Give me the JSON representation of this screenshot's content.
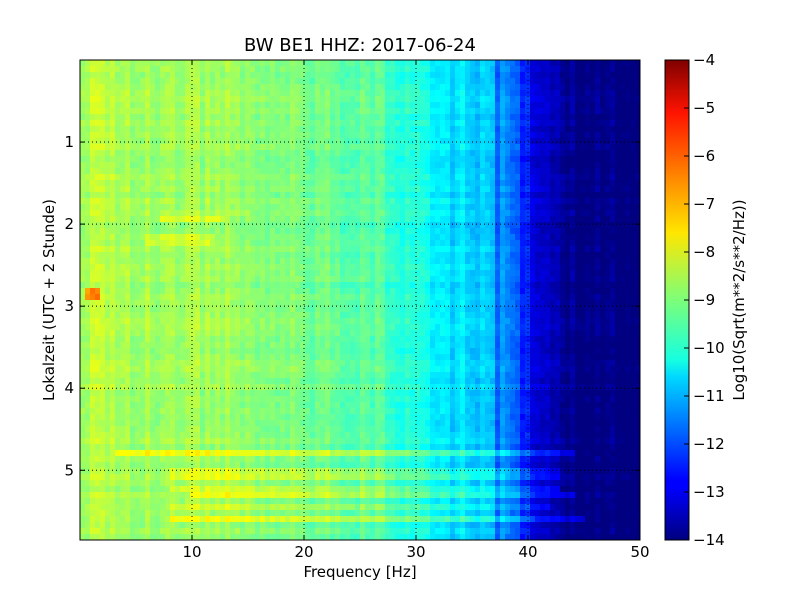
{
  "chart_data": {
    "type": "heatmap",
    "title": "BW BE1 HHZ: 2017-06-24",
    "xlabel": "Frequency [Hz]",
    "ylabel": "Lokalzeit (UTC + 2 Stunde)",
    "xlim": [
      0,
      50
    ],
    "ylim": [
      5.85,
      0
    ],
    "x_ticks": [
      10,
      20,
      30,
      40,
      50
    ],
    "x_tick_labels": [
      "10",
      "20",
      "30",
      "40",
      "50"
    ],
    "y_ticks": [
      1,
      2,
      3,
      4,
      5
    ],
    "y_tick_labels": [
      "1",
      "2",
      "3",
      "4",
      "5"
    ],
    "grid": true,
    "colormap": "jet",
    "colorbar": {
      "label": "Log10(Sqrt(m**2/s**2/Hz))",
      "range": [
        -14,
        -4
      ],
      "ticks": [
        -4,
        -5,
        -6,
        -7,
        -8,
        -9,
        -10,
        -11,
        -12,
        -13,
        -14
      ],
      "tick_labels": [
        "−4",
        "−5",
        "−6",
        "−7",
        "−8",
        "−9",
        "−10",
        "−11",
        "−12",
        "−13",
        "−14"
      ]
    },
    "frequency_profile": {
      "frequency_hz": [
        0,
        2,
        5,
        8,
        12,
        16,
        20,
        25,
        28,
        30,
        31,
        33,
        35,
        36,
        37,
        38,
        39,
        40,
        41,
        42,
        43,
        44,
        45,
        50
      ],
      "log10_amplitude": [
        -8.5,
        -8.4,
        -8.7,
        -8.6,
        -8.7,
        -8.8,
        -9.1,
        -9.3,
        -9.6,
        -9.9,
        -10.2,
        -10.4,
        -10.6,
        -10.8,
        -11.1,
        -11.5,
        -12.0,
        -12.6,
        -13.2,
        -13.6,
        -13.8,
        -13.9,
        -14.0,
        -14.0
      ]
    },
    "horizontal_bands": [
      {
        "time_h": 1.95,
        "fmin_hz": 7,
        "fmax_hz": 13,
        "delta_log10": 0.6
      },
      {
        "time_h": 2.2,
        "fmin_hz": 6,
        "fmax_hz": 12,
        "delta_log10": 0.5
      },
      {
        "time_h": 2.85,
        "fmin_hz": 0.3,
        "fmax_hz": 2,
        "delta_log10": 1.8
      },
      {
        "time_h": 4.8,
        "fmin_hz": 3,
        "fmax_hz": 44,
        "delta_log10": 0.9
      },
      {
        "time_h": 5.05,
        "fmin_hz": 8,
        "fmax_hz": 43,
        "delta_log10": 0.6
      },
      {
        "time_h": 5.2,
        "fmin_hz": 8,
        "fmax_hz": 43,
        "delta_log10": 0.7
      },
      {
        "time_h": 5.3,
        "fmin_hz": 10,
        "fmax_hz": 44,
        "delta_log10": 0.7
      },
      {
        "time_h": 5.45,
        "fmin_hz": 8,
        "fmax_hz": 42,
        "delta_log10": 0.5
      },
      {
        "time_h": 5.62,
        "fmin_hz": 8,
        "fmax_hz": 45,
        "delta_log10": 0.9
      }
    ],
    "spectral_lines": [
      {
        "frequency_hz": 33.5,
        "delta_log10": -0.3
      },
      {
        "frequency_hz": 37.2,
        "delta_log10": -0.8
      }
    ]
  }
}
